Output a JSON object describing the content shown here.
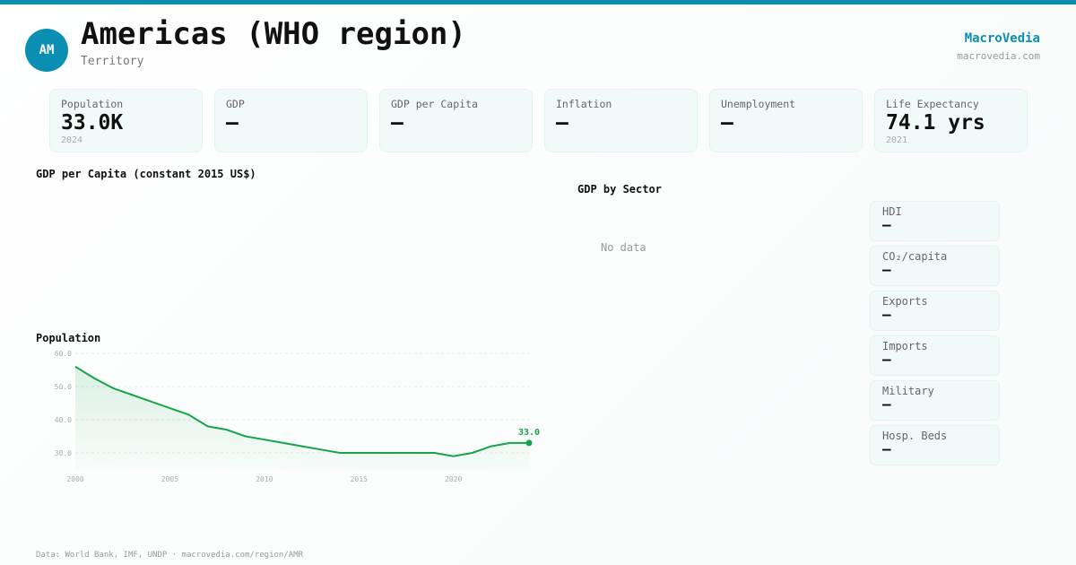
{
  "header": {
    "avatar": "AM",
    "title": "Americas (WHO region)",
    "subtitle": "Territory",
    "brand": "MacroVedia",
    "brand_url": "macrovedia.com"
  },
  "stats": [
    {
      "label": "Population",
      "value": "33.0K",
      "year": "2024"
    },
    {
      "label": "GDP",
      "value": "—",
      "year": ""
    },
    {
      "label": "GDP per Capita",
      "value": "—",
      "year": ""
    },
    {
      "label": "Inflation",
      "value": "—",
      "year": ""
    },
    {
      "label": "Unemployment",
      "value": "—",
      "year": ""
    },
    {
      "label": "Life Expectancy",
      "value": "74.1 yrs",
      "year": "2021"
    }
  ],
  "sections": {
    "gdp_per_capita": "GDP per Capita (constant 2015 US$)",
    "gdp_by_sector": "GDP by Sector",
    "no_data": "No data",
    "population": "Population"
  },
  "side_stats": [
    {
      "label": "HDI",
      "value": "—"
    },
    {
      "label": "CO₂/capita",
      "value": "—"
    },
    {
      "label": "Exports",
      "value": "—"
    },
    {
      "label": "Imports",
      "value": "—"
    },
    {
      "label": "Military",
      "value": "—"
    },
    {
      "label": "Hosp. Beds",
      "value": "—"
    }
  ],
  "footer": "Data: World Bank, IMF, UNDP · macrovedia.com/region/AMR",
  "chart_data": {
    "type": "area",
    "title": "Population",
    "x": [
      2000,
      2001,
      2002,
      2003,
      2004,
      2005,
      2006,
      2007,
      2008,
      2009,
      2010,
      2011,
      2012,
      2013,
      2014,
      2015,
      2016,
      2017,
      2018,
      2019,
      2020,
      2021,
      2022,
      2023,
      2024
    ],
    "values": [
      56,
      52.5,
      49.5,
      47.5,
      45.5,
      43.5,
      41.5,
      38,
      37,
      35,
      34,
      33,
      32,
      31,
      30,
      30,
      30,
      30,
      30,
      30,
      29,
      30,
      32,
      33,
      33
    ],
    "yticks": [
      "60.0",
      "50.0",
      "40.0",
      "30.0"
    ],
    "xticks": [
      "2000",
      "2005",
      "2010",
      "2015",
      "2020"
    ],
    "last_label": "33.0",
    "ylim": [
      25,
      60
    ],
    "grid": true,
    "color": "#16a34a"
  }
}
